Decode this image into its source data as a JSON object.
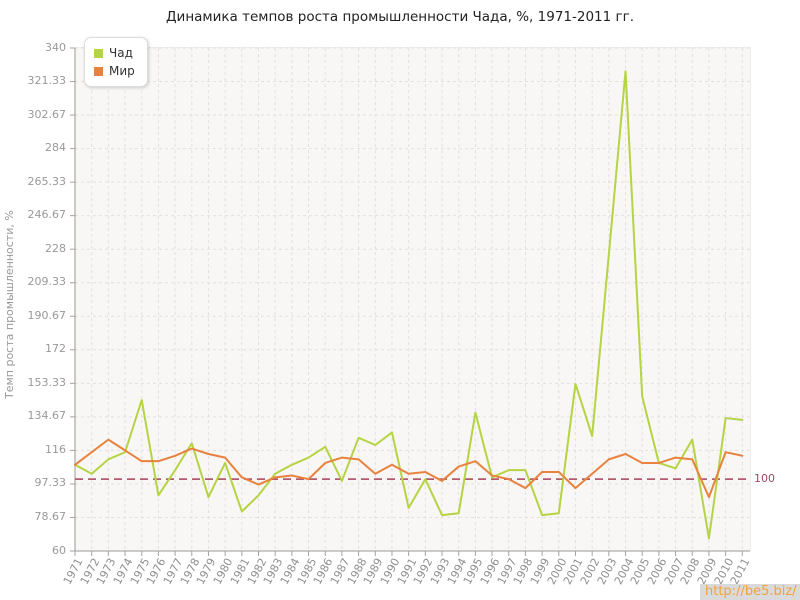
{
  "title": "Динамика темпов роста промышленности Чада, %, 1971-2011 гг.",
  "y_axis_label": "Темп роста промышленности, %",
  "legend": {
    "items": [
      {
        "label": "Чад",
        "color": "#b4d443"
      },
      {
        "label": "Мир",
        "color": "#e8823e"
      }
    ]
  },
  "reference_line": {
    "value": 100,
    "label": "100",
    "color": "#b25b6e"
  },
  "watermark": "http://be5.biz/",
  "chart_data": {
    "type": "line",
    "title": "Динамика темпов роста промышленности Чада, %, 1971-2011 гг.",
    "ylabel": "Темп роста промышленности, %",
    "xlabel": "",
    "grid": true,
    "legend_position": "top-left",
    "ylim": [
      60,
      340
    ],
    "yticks": [
      {
        "value": 340,
        "label": "340"
      },
      {
        "value": 321.33,
        "label": "321.33"
      },
      {
        "value": 302.67,
        "label": "302.67"
      },
      {
        "value": 284,
        "label": "284"
      },
      {
        "value": 265.33,
        "label": "265.33"
      },
      {
        "value": 246.67,
        "label": "246.67"
      },
      {
        "value": 228,
        "label": "228"
      },
      {
        "value": 209.33,
        "label": "209.33"
      },
      {
        "value": 190.67,
        "label": "190.67"
      },
      {
        "value": 172,
        "label": "172"
      },
      {
        "value": 153.33,
        "label": "153.33"
      },
      {
        "value": 134.67,
        "label": "134.67"
      },
      {
        "value": 116,
        "label": "116"
      },
      {
        "value": 97.33,
        "label": "97.33"
      },
      {
        "value": 78.67,
        "label": "78.67"
      },
      {
        "value": 60,
        "label": "60"
      }
    ],
    "x": [
      1971,
      1972,
      1973,
      1974,
      1975,
      1976,
      1977,
      1978,
      1979,
      1980,
      1981,
      1982,
      1983,
      1984,
      1985,
      1986,
      1987,
      1988,
      1989,
      1990,
      1991,
      1992,
      1993,
      1994,
      1995,
      1996,
      1997,
      1998,
      1999,
      2000,
      2001,
      2002,
      2003,
      2004,
      2005,
      2006,
      2007,
      2008,
      2009,
      2010,
      2011
    ],
    "reference_value": 100,
    "series": [
      {
        "name": "Чад",
        "color": "#b4d443",
        "values": [
          108,
          103,
          111,
          115,
          144,
          91,
          105,
          120,
          90,
          109,
          82,
          91,
          103,
          108,
          112,
          118,
          99,
          123,
          119,
          126,
          84,
          100,
          80,
          81,
          137,
          101,
          105,
          105,
          80,
          81,
          153,
          124,
          225,
          327,
          146,
          109,
          106,
          122,
          67,
          134,
          133
        ]
      },
      {
        "name": "Мир",
        "color": "#e8823e",
        "values": [
          108,
          115,
          122,
          116,
          110,
          110,
          113,
          117,
          114,
          112,
          101,
          97,
          101,
          102,
          100,
          109,
          112,
          111,
          103,
          108,
          103,
          104,
          99,
          107,
          110,
          102,
          100,
          95,
          104,
          104,
          95,
          103,
          111,
          114,
          109,
          109,
          112,
          111,
          90,
          115,
          113
        ]
      }
    ]
  }
}
